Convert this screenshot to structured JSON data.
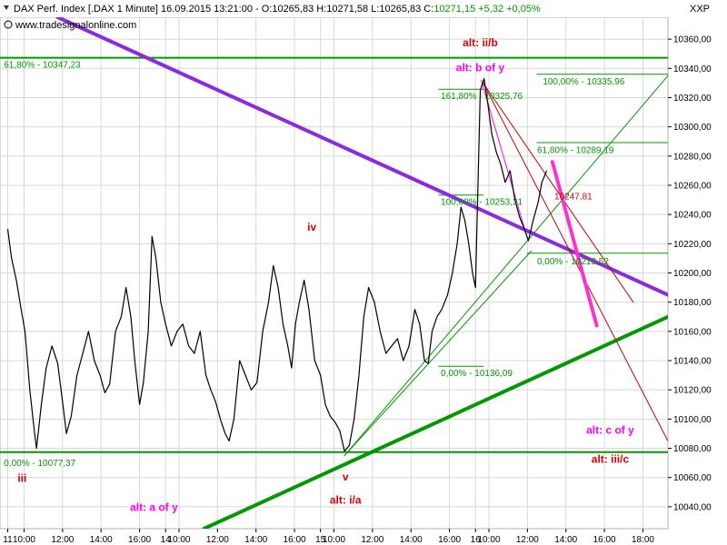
{
  "header": {
    "text": "DAX Perf. Index [.DAX 1 Minute] 16.09.2015 13:21:00 - O:10265,83 H:10271,58 L:10265,83 C:",
    "close_text": "10271,15 +5,32 +0,05%",
    "close_color": "#009900",
    "source": "www.tradesignalonline.com",
    "axis_name": "XXP"
  },
  "chart_data": {
    "type": "line",
    "title": "DAX Perf. Index [.DAX 1 Minute]",
    "ylim": [
      10025,
      10375
    ],
    "y_ticks": [
      10040,
      10060,
      10080,
      10100,
      10120,
      10140,
      10160,
      10180,
      10200,
      10220,
      10240,
      10260,
      10280,
      10300,
      10320,
      10340,
      10360
    ],
    "y_tick_labels": [
      "10040,00",
      "10060,00",
      "10080,00",
      "10100,00",
      "10120,00",
      "10140,00",
      "10160,00",
      "10180,00",
      "10200,00",
      "10220,00",
      "10240,00",
      "10260,00",
      "10280,00",
      "10300,00",
      "10320,00",
      "10340,00",
      "10360,00"
    ],
    "x_ticks": [
      {
        "t": 0.0,
        "label": "11"
      },
      {
        "t": 0.85,
        "label": "10:00"
      },
      {
        "t": 2.85,
        "label": "12:00"
      },
      {
        "t": 4.85,
        "label": "14:00"
      },
      {
        "t": 6.85,
        "label": "16:00"
      },
      {
        "t": 8.2,
        "label": "14"
      },
      {
        "t": 8.9,
        "label": "10:00"
      },
      {
        "t": 10.9,
        "label": "12:00"
      },
      {
        "t": 12.9,
        "label": "14:00"
      },
      {
        "t": 14.9,
        "label": "16:00"
      },
      {
        "t": 16.25,
        "label": "15"
      },
      {
        "t": 16.95,
        "label": "10:00"
      },
      {
        "t": 18.95,
        "label": "12:00"
      },
      {
        "t": 20.95,
        "label": "14:00"
      },
      {
        "t": 22.95,
        "label": "16:00"
      },
      {
        "t": 24.3,
        "label": "16"
      },
      {
        "t": 25.0,
        "label": "10:00"
      },
      {
        "t": 27.0,
        "label": "12:00"
      },
      {
        "t": 29.0,
        "label": "14:00"
      },
      {
        "t": 31.0,
        "label": "16:00"
      },
      {
        "t": 33.0,
        "label": "18:00"
      }
    ],
    "xlim": [
      -0.4,
      34.3
    ],
    "series": [
      {
        "color": "#000000",
        "points": [
          [
            0.0,
            10230
          ],
          [
            0.2,
            10210
          ],
          [
            0.45,
            10195
          ],
          [
            0.7,
            10175
          ],
          [
            0.9,
            10160
          ],
          [
            1.15,
            10120
          ],
          [
            1.4,
            10090
          ],
          [
            1.5,
            10080
          ],
          [
            1.75,
            10110
          ],
          [
            2.0,
            10135
          ],
          [
            2.3,
            10150
          ],
          [
            2.6,
            10138
          ],
          [
            2.85,
            10112
          ],
          [
            3.05,
            10090
          ],
          [
            3.3,
            10102
          ],
          [
            3.6,
            10130
          ],
          [
            3.9,
            10145
          ],
          [
            4.2,
            10160
          ],
          [
            4.5,
            10140
          ],
          [
            4.8,
            10130
          ],
          [
            5.05,
            10118
          ],
          [
            5.3,
            10124
          ],
          [
            5.6,
            10160
          ],
          [
            5.9,
            10170
          ],
          [
            6.15,
            10190
          ],
          [
            6.4,
            10170
          ],
          [
            6.6,
            10140
          ],
          [
            6.85,
            10110
          ],
          [
            7.05,
            10125
          ],
          [
            7.3,
            10160
          ],
          [
            7.5,
            10225
          ],
          [
            7.7,
            10210
          ],
          [
            7.95,
            10180
          ],
          [
            8.2,
            10165
          ],
          [
            8.5,
            10150
          ],
          [
            8.8,
            10160
          ],
          [
            9.1,
            10165
          ],
          [
            9.4,
            10150
          ],
          [
            9.7,
            10145
          ],
          [
            10.0,
            10160
          ],
          [
            10.3,
            10130
          ],
          [
            10.55,
            10120
          ],
          [
            10.8,
            10112
          ],
          [
            11.05,
            10100
          ],
          [
            11.3,
            10090
          ],
          [
            11.5,
            10085
          ],
          [
            11.75,
            10100
          ],
          [
            12.05,
            10140
          ],
          [
            12.35,
            10130
          ],
          [
            12.65,
            10120
          ],
          [
            12.95,
            10125
          ],
          [
            13.25,
            10160
          ],
          [
            13.55,
            10180
          ],
          [
            13.8,
            10205
          ],
          [
            14.05,
            10190
          ],
          [
            14.3,
            10165
          ],
          [
            14.55,
            10150
          ],
          [
            14.75,
            10135
          ],
          [
            14.95,
            10165
          ],
          [
            15.15,
            10180
          ],
          [
            15.4,
            10195
          ],
          [
            15.65,
            10175
          ],
          [
            15.95,
            10140
          ],
          [
            16.25,
            10130
          ],
          [
            16.5,
            10110
          ],
          [
            16.75,
            10102
          ],
          [
            17.0,
            10098
          ],
          [
            17.25,
            10092
          ],
          [
            17.5,
            10078
          ],
          [
            17.75,
            10082
          ],
          [
            18.0,
            10100
          ],
          [
            18.25,
            10130
          ],
          [
            18.5,
            10170
          ],
          [
            18.75,
            10190
          ],
          [
            19.05,
            10180
          ],
          [
            19.35,
            10160
          ],
          [
            19.65,
            10145
          ],
          [
            19.95,
            10150
          ],
          [
            20.25,
            10155
          ],
          [
            20.55,
            10140
          ],
          [
            20.85,
            10150
          ],
          [
            21.15,
            10175
          ],
          [
            21.4,
            10165
          ],
          [
            21.65,
            10140
          ],
          [
            21.85,
            10138
          ],
          [
            22.05,
            10160
          ],
          [
            22.3,
            10170
          ],
          [
            22.55,
            10175
          ],
          [
            22.85,
            10185
          ],
          [
            23.1,
            10200
          ],
          [
            23.35,
            10220
          ],
          [
            23.55,
            10245
          ],
          [
            23.75,
            10236
          ],
          [
            23.95,
            10220
          ],
          [
            24.15,
            10200
          ],
          [
            24.3,
            10190
          ],
          [
            24.55,
            10325
          ],
          [
            24.75,
            10333
          ],
          [
            24.95,
            10315
          ],
          [
            25.15,
            10295
          ],
          [
            25.4,
            10282
          ],
          [
            25.6,
            10275
          ],
          [
            25.85,
            10262
          ],
          [
            26.1,
            10270
          ],
          [
            26.35,
            10250
          ],
          [
            26.6,
            10238
          ],
          [
            26.85,
            10230
          ],
          [
            27.05,
            10222
          ],
          [
            27.3,
            10236
          ],
          [
            27.55,
            10248
          ],
          [
            27.75,
            10262
          ],
          [
            28.0,
            10270
          ]
        ]
      }
    ],
    "annotation_lines": [
      {
        "name": "fib-level-61-8-top",
        "color": "#009900",
        "width": 2,
        "x1": -0.4,
        "y1": 10347.23,
        "x2": 34.3,
        "y2": 10347.23
      },
      {
        "name": "fib-level-0-bottom",
        "color": "#009900",
        "width": 2,
        "x1": -0.4,
        "y1": 10077.37,
        "x2": 34.3,
        "y2": 10077.37
      },
      {
        "name": "fib-level-100-upper",
        "color": "#009900",
        "width": 1,
        "x1": 27.5,
        "y1": 10335.96,
        "x2": 34.3,
        "y2": 10335.96
      },
      {
        "name": "fib-level-61-8-upper",
        "color": "#009900",
        "width": 1,
        "x1": 27.5,
        "y1": 10289.19,
        "x2": 34.3,
        "y2": 10289.19
      },
      {
        "name": "fib-level-0-lower",
        "color": "#009900",
        "width": 1,
        "x1": 27.0,
        "y1": 10213.52,
        "x2": 34.3,
        "y2": 10213.52
      },
      {
        "name": "fib-level-161-8",
        "color": "#009900",
        "width": 1,
        "x1": 22.4,
        "y1": 10325.76,
        "x2": 24.7,
        "y2": 10325.76
      },
      {
        "name": "fib-level-100-mid",
        "color": "#009900",
        "width": 1,
        "x1": 22.4,
        "y1": 10253.31,
        "x2": 24.7,
        "y2": 10253.31
      },
      {
        "name": "fib-level-0-mid",
        "color": "#009900",
        "width": 1,
        "x1": 22.4,
        "y1": 10136.09,
        "x2": 24.7,
        "y2": 10136.09
      },
      {
        "name": "green-channel-thin-1",
        "color": "#009900",
        "width": 1,
        "x1": 17.5,
        "y1": 10075,
        "x2": 34.3,
        "y2": 10335
      },
      {
        "name": "green-channel-thin-2",
        "color": "#009900",
        "width": 1,
        "x1": 17.5,
        "y1": 10075,
        "x2": 27.2,
        "y2": 10215
      },
      {
        "name": "green-support-trendline",
        "color": "#009900",
        "width": 4,
        "x1": 10.2,
        "y1": 10025,
        "x2": 34.3,
        "y2": 10170
      },
      {
        "name": "purple-resistance-trendline",
        "color": "#8a2be2",
        "width": 4,
        "x1": 2.6,
        "y1": 10375,
        "x2": 34.3,
        "y2": 10185
      },
      {
        "name": "magenta-wave-line",
        "color": "#ff00ff",
        "width": 1,
        "x1": 24.6,
        "y1": 10332,
        "x2": 26.9,
        "y2": 10228
      },
      {
        "name": "red-target-line-1",
        "color": "#cc0000",
        "width": 1,
        "x1": 24.7,
        "y1": 10330,
        "x2": 34.3,
        "y2": 10085
      },
      {
        "name": "red-target-line-2",
        "color": "#cc0000",
        "width": 1,
        "x1": 24.7,
        "y1": 10330,
        "x2": 32.5,
        "y2": 10180
      },
      {
        "name": "magenta-projection-arrow",
        "color": "#ff33cc",
        "width": 4,
        "x1": 28.3,
        "y1": 10276,
        "x2": 30.6,
        "y2": 10164
      }
    ],
    "level_labels": [
      {
        "text": "61,80% - 10347,23",
        "color": "#009900",
        "x": -0.2,
        "y": 10340.5,
        "anchor": "start"
      },
      {
        "text": "0,00% - 10077,37",
        "color": "#009900",
        "x": -0.2,
        "y": 10068,
        "anchor": "start"
      },
      {
        "text": "100,00% - 10335,96",
        "color": "#009900",
        "x": 27.8,
        "y": 10329,
        "anchor": "start"
      },
      {
        "text": "61,80% - 10289,19",
        "color": "#009900",
        "x": 27.5,
        "y": 10282,
        "anchor": "start"
      },
      {
        "text": "0,00% - 10213,52",
        "color": "#009900",
        "x": 27.5,
        "y": 10206,
        "anchor": "start"
      },
      {
        "text": "161,80% - 10325,76",
        "color": "#009900",
        "x": 22.5,
        "y": 10319,
        "anchor": "start"
      },
      {
        "text": "100,00% - 10253,31",
        "color": "#009900",
        "x": 22.5,
        "y": 10246.5,
        "anchor": "start"
      },
      {
        "text": "0,00% - 10136,09",
        "color": "#009900",
        "x": 22.5,
        "y": 10129.5,
        "anchor": "start"
      },
      {
        "text": "10247,81",
        "color": "#cc0000",
        "x": 28.4,
        "y": 10250.5,
        "anchor": "start"
      }
    ],
    "wave_labels": [
      {
        "text": "alt: ii/b",
        "color": "#dd0000",
        "x": 24.55,
        "y": 10355,
        "anchor": "middle"
      },
      {
        "text": "alt: b of y",
        "color": "#ff00ff",
        "x": 24.55,
        "y": 10338,
        "anchor": "middle"
      },
      {
        "text": "iv",
        "color": "#dd0000",
        "x": 15.8,
        "y": 10229,
        "anchor": "middle"
      },
      {
        "text": "iii",
        "color": "#dd0000",
        "x": 0.75,
        "y": 10057,
        "anchor": "middle"
      },
      {
        "text": "v",
        "color": "#dd0000",
        "x": 17.55,
        "y": 10058,
        "anchor": "middle"
      },
      {
        "text": "alt: i/a",
        "color": "#dd0000",
        "x": 17.55,
        "y": 10042,
        "anchor": "middle"
      },
      {
        "text": "alt: a of y",
        "color": "#ff00ff",
        "x": 7.6,
        "y": 10037,
        "anchor": "middle"
      },
      {
        "text": "alt: c of y",
        "color": "#ff00ff",
        "x": 31.3,
        "y": 10090,
        "anchor": "middle"
      },
      {
        "text": "alt: iii/c",
        "color": "#dd0000",
        "x": 31.3,
        "y": 10070,
        "anchor": "middle"
      }
    ]
  }
}
